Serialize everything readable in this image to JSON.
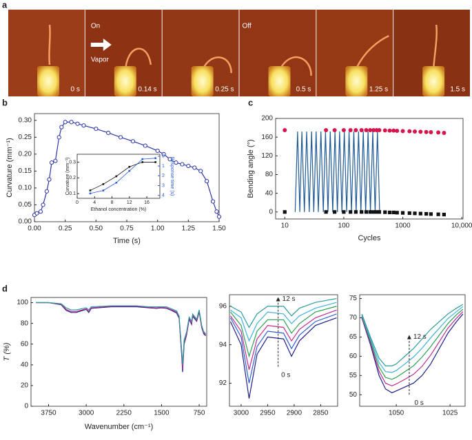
{
  "photo_strip": {
    "label": "a",
    "on": "On",
    "vapor": "Vapor",
    "off": "Off",
    "times": [
      "0 s",
      "0.14 s",
      "0.25 s",
      "0.5 s",
      "1.25 s",
      "1.5 s"
    ]
  },
  "chart_data": [
    {
      "type": "line",
      "panel_label": "b",
      "xlabel": "Time (s)",
      "ylabel": "Curvature (mm⁻¹)",
      "x": [
        0,
        0.02,
        0.05,
        0.07,
        0.1,
        0.12,
        0.14,
        0.17,
        0.2,
        0.22,
        0.25,
        0.3,
        0.35,
        0.4,
        0.5,
        0.6,
        0.7,
        0.8,
        0.9,
        1.0,
        1.05,
        1.1,
        1.15,
        1.2,
        1.25,
        1.3,
        1.35,
        1.4,
        1.45,
        1.48,
        1.5
      ],
      "series": [
        {
          "color": "#2b35a8",
          "marker": "open-circle",
          "values": [
            0.02,
            0.025,
            0.03,
            0.05,
            0.09,
            0.125,
            0.175,
            0.18,
            0.25,
            0.28,
            0.295,
            0.295,
            0.29,
            0.285,
            0.275,
            0.263,
            0.25,
            0.238,
            0.225,
            0.21,
            0.2,
            0.185,
            0.175,
            0.17,
            0.165,
            0.16,
            0.15,
            0.12,
            0.06,
            0.03,
            0.015
          ]
        }
      ],
      "xlim": [
        0,
        1.5
      ],
      "ylim": [
        0,
        0.32
      ],
      "xticks": [
        {
          "value": 0,
          "label": "0.00"
        },
        {
          "value": 0.25,
          "label": "0.25"
        },
        {
          "value": 0.5,
          "label": "0.50"
        },
        {
          "value": 0.75,
          "label": "0.75"
        },
        {
          "value": 1,
          "label": "1.00"
        },
        {
          "value": 1.25,
          "label": "1.25"
        },
        {
          "value": 1.5,
          "label": "1.50"
        }
      ],
      "yticks": [
        {
          "value": 0,
          "label": "0.00"
        },
        {
          "value": 0.05,
          "label": "0.05"
        },
        {
          "value": 0.1,
          "label": "0.10"
        },
        {
          "value": 0.15,
          "label": "0.15"
        },
        {
          "value": 0.2,
          "label": "0.20"
        },
        {
          "value": 0.25,
          "label": "0.25"
        },
        {
          "value": 0.3,
          "label": "0.30"
        }
      ]
    },
    {
      "type": "line",
      "xlabel": "Ethanol concentration (%)",
      "ylabel": "Curvature (mm⁻¹)",
      "y2label": "Response time (s)",
      "x": [
        3,
        6,
        9,
        12,
        15,
        18
      ],
      "series": [
        {
          "color": "#111111",
          "marker": "square",
          "values": [
            0.12,
            0.16,
            0.21,
            0.27,
            0.3,
            0.3
          ]
        },
        {
          "color": "#2a5bd7",
          "marker": "square",
          "axis": "y2",
          "values": [
            3.8,
            3.5,
            2.7,
            1.5,
            0.3,
            0.2
          ]
        }
      ],
      "xlim": [
        0,
        19
      ],
      "ylim": [
        0.07,
        0.35
      ],
      "y2lim": [
        4.3,
        -0.2
      ],
      "xticks": [
        0,
        4,
        8,
        12,
        16
      ],
      "yticks": [
        0.1,
        0.2,
        0.3
      ],
      "y2ticks": [
        0,
        1,
        2,
        3,
        4
      ]
    },
    {
      "type": "line",
      "panel_label": "c",
      "xlabel": "Cycles",
      "ylabel": "Bending angle (°)",
      "log_x": true,
      "series": [
        {
          "color": "#1f5a96",
          "marker": "none",
          "x": [
            15,
            16.5,
            18,
            19.5,
            21.5,
            23.5,
            26,
            28.5,
            31,
            34,
            37,
            41,
            45,
            49,
            54,
            59,
            65,
            71,
            78,
            85,
            93,
            102,
            112,
            123,
            135,
            148,
            162,
            178,
            195,
            214,
            235,
            258,
            283,
            310,
            340,
            372,
            405
          ],
          "values": [
            0,
            172,
            0,
            172,
            0,
            172,
            0,
            172,
            0,
            172,
            0,
            172,
            0,
            172,
            0,
            172,
            0,
            172,
            0,
            172,
            0,
            172,
            0,
            172,
            0,
            172,
            0,
            172,
            0,
            172,
            0,
            172,
            0,
            172,
            0,
            172,
            0
          ]
        },
        {
          "color": "#d4164f",
          "marker": "circle",
          "line": false,
          "x": [
            10,
            50,
            70,
            100,
            130,
            160,
            200,
            240,
            280,
            320,
            360,
            400,
            500,
            600,
            700,
            800,
            1000,
            1300,
            1600,
            2000,
            2500,
            3000,
            4000,
            5000
          ],
          "values": [
            175,
            175,
            175,
            175,
            175,
            175,
            175,
            175,
            175,
            175,
            175,
            175,
            174.5,
            174,
            174,
            173.5,
            173,
            172.5,
            172,
            171.5,
            171,
            170.5,
            170,
            169
          ]
        },
        {
          "color": "#111111",
          "marker": "square",
          "line": false,
          "x": [
            10,
            50,
            70,
            100,
            130,
            160,
            200,
            240,
            280,
            320,
            360,
            400,
            500,
            600,
            700,
            800,
            1000,
            1300,
            1600,
            2000,
            2500,
            3000,
            4000,
            5000
          ],
          "values": [
            0,
            0,
            0,
            0,
            0,
            0,
            0,
            0,
            0,
            0,
            0,
            0,
            -0.5,
            -1,
            -1,
            -1.5,
            -2,
            -2.5,
            -3,
            -3.5,
            -4,
            -4.5,
            -5,
            -5.5
          ]
        }
      ],
      "xlim": [
        7,
        10500
      ],
      "ylim": [
        -15,
        200
      ],
      "xticks": [
        10,
        100,
        1000,
        {
          "value": 10000,
          "label": "10,000"
        }
      ],
      "yticks": [
        0,
        40,
        80,
        120,
        160,
        200
      ]
    },
    {
      "type": "line",
      "panel_label": "d",
      "xlabel": "Wavenumber (cm⁻¹)",
      "ylabel": "T (%)",
      "x": [
        4000,
        3750,
        3500,
        3400,
        3300,
        3200,
        3000,
        2950,
        2900,
        2500,
        2000,
        1750,
        1600,
        1500,
        1400,
        1300,
        1200,
        1150,
        1100,
        1080,
        1050,
        1000,
        950,
        900,
        880,
        800,
        750,
        700,
        660,
        620
      ],
      "series": [
        {
          "color": "#1b1f8a",
          "values": [
            100,
            100,
            98,
            92.5,
            90.5,
            90.5,
            93.5,
            90.5,
            94.5,
            96,
            96,
            95,
            94.5,
            95,
            94.5,
            92.5,
            90,
            85,
            50,
            33,
            60,
            69,
            84,
            79,
            87,
            82,
            91,
            76,
            70,
            68
          ]
        },
        {
          "color": "#c02890",
          "values": [
            100,
            100,
            98.5,
            93.5,
            91.5,
            91.5,
            94,
            91.5,
            95,
            96.5,
            96.5,
            95.5,
            95,
            95.5,
            95,
            93,
            91,
            86,
            52,
            36,
            62,
            70,
            85,
            80,
            88,
            83,
            92,
            77,
            71,
            69
          ]
        },
        {
          "color": "#2a9a9a",
          "values": [
            100,
            100,
            99,
            95,
            93,
            93,
            95,
            93,
            96,
            97,
            97,
            96,
            96,
            96,
            96,
            94,
            92,
            87,
            55,
            40,
            64,
            72,
            86,
            82,
            89,
            84,
            93,
            78,
            72,
            70
          ]
        }
      ],
      "xlim": [
        4100,
        600
      ],
      "ylim": [
        0,
        105
      ],
      "xticks": [
        3750,
        3000,
        2250,
        1500,
        750
      ],
      "yticks": [
        0,
        20,
        40,
        60,
        80,
        100
      ]
    },
    {
      "type": "line",
      "annotations": [
        "12 s",
        "0 s"
      ],
      "x": [
        3020,
        3000,
        2985,
        2970,
        2950,
        2920,
        2905,
        2890,
        2860,
        2820
      ],
      "series": [
        {
          "color": "#1b1f8a",
          "values": [
            95.2,
            94.0,
            91.2,
            93.5,
            94.4,
            94.3,
            93.4,
            94.2,
            95.0,
            95.4
          ]
        },
        {
          "color": "#2c5fd6",
          "values": [
            95.4,
            94.4,
            92.0,
            93.9,
            94.7,
            94.6,
            93.8,
            94.5,
            95.2,
            95.6
          ]
        },
        {
          "color": "#c02890",
          "values": [
            95.5,
            94.7,
            92.7,
            94.3,
            95.0,
            94.9,
            94.2,
            94.8,
            95.4,
            95.8
          ]
        },
        {
          "color": "#28a050",
          "values": [
            95.7,
            95.0,
            93.4,
            94.7,
            95.3,
            95.3,
            94.6,
            95.1,
            95.7,
            96.0
          ]
        },
        {
          "color": "#3cb0e0",
          "values": [
            95.8,
            95.4,
            94.2,
            95.1,
            95.7,
            95.6,
            95.1,
            95.5,
            95.9,
            96.2
          ]
        },
        {
          "color": "#2a9a9a",
          "values": [
            96.0,
            95.7,
            94.9,
            95.6,
            96.0,
            96.0,
            95.5,
            95.9,
            96.2,
            96.4
          ]
        }
      ],
      "xlim": [
        3022,
        2818
      ],
      "ylim": [
        90.8,
        96.6
      ],
      "xticks": [
        3000,
        2950,
        2900,
        2850
      ],
      "yticks": [
        92,
        94,
        96
      ]
    },
    {
      "type": "line",
      "annotations": [
        "12 s",
        "0 s"
      ],
      "x": [
        1066,
        1062,
        1058,
        1055,
        1052,
        1050,
        1046,
        1042,
        1038,
        1034,
        1030,
        1026,
        1022,
        1019
      ],
      "series": [
        {
          "color": "#1b1f8a",
          "values": [
            70,
            63,
            55,
            51.5,
            50.5,
            51,
            52,
            53,
            55,
            58,
            62,
            66,
            69,
            71
          ]
        },
        {
          "color": "#c02890",
          "values": [
            70.2,
            63.5,
            56.1,
            53,
            52.3,
            52.8,
            54,
            55.3,
            57.4,
            60.3,
            63.8,
            67.3,
            69.9,
            71.6
          ]
        },
        {
          "color": "#28a050",
          "values": [
            70.5,
            64,
            57.2,
            54.5,
            54,
            54.5,
            56,
            57.5,
            59.8,
            62.5,
            65.5,
            68.5,
            70.8,
            72.2
          ]
        },
        {
          "color": "#3cb0e0",
          "values": [
            70.7,
            64.5,
            58.4,
            56,
            55.8,
            56.3,
            58,
            59.8,
            62.1,
            64.8,
            67.3,
            69.8,
            71.6,
            72.9
          ]
        },
        {
          "color": "#2a9a9a",
          "values": [
            71,
            65,
            59.5,
            57.5,
            57.5,
            58,
            60,
            62,
            64.5,
            67,
            69,
            71,
            72.5,
            73.5
          ]
        }
      ],
      "xlim": [
        1067,
        1018
      ],
      "ylim": [
        47,
        76
      ],
      "xticks": [
        1050,
        1025
      ],
      "yticks": [
        50,
        55,
        60,
        65,
        70,
        75
      ]
    }
  ]
}
